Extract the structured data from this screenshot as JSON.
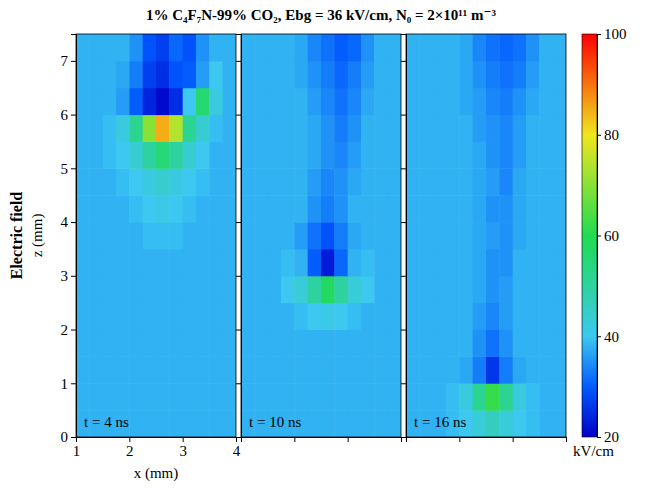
{
  "chart_data": [
    {
      "type": "heatmap",
      "title": "1% C₄F₇N-99% CO₂, Ebg = 36 kV/cm, N₀ = 2×10¹¹ m⁻³",
      "row_label": "Electric field",
      "xlabel": "x (mm)",
      "ylabel": "z (mm)",
      "annotation": "t = 4 ns",
      "xlim": [
        1,
        4
      ],
      "xticks": [
        1,
        2,
        3,
        4
      ],
      "ylim": [
        0,
        7.5
      ],
      "yticks": [
        0,
        1,
        2,
        3,
        4,
        5,
        6,
        7
      ],
      "x": [
        1.125,
        1.375,
        1.625,
        1.875,
        2.125,
        2.375,
        2.625,
        2.875,
        3.125,
        3.375,
        3.625,
        3.875
      ],
      "y": [
        0.25,
        0.75,
        1.25,
        1.75,
        2.25,
        2.75,
        3.25,
        3.75,
        4.25,
        4.75,
        5.25,
        5.75,
        6.25,
        6.75,
        7.25
      ],
      "values": [
        [
          38,
          38,
          38,
          38,
          38,
          38,
          38,
          38,
          38,
          38,
          38,
          38
        ],
        [
          38,
          38,
          38,
          38,
          38,
          38,
          38,
          38,
          38,
          38,
          38,
          38
        ],
        [
          38,
          38,
          38,
          38,
          38,
          38,
          38,
          38,
          38,
          38,
          38,
          38
        ],
        [
          38,
          38,
          38,
          38,
          38,
          38,
          38,
          38,
          38,
          38,
          38,
          38
        ],
        [
          38,
          38,
          38,
          38,
          38,
          38,
          38,
          38,
          38,
          38,
          38,
          38
        ],
        [
          38,
          38,
          38,
          38,
          38,
          38,
          38,
          38,
          38,
          38,
          38,
          38
        ],
        [
          38,
          38,
          38,
          38,
          38,
          38,
          38,
          38,
          38,
          38,
          38,
          38
        ],
        [
          38,
          38,
          38,
          38,
          38,
          39,
          39,
          39,
          38,
          38,
          38,
          38
        ],
        [
          38,
          38,
          38,
          38,
          39,
          40,
          41,
          40,
          39,
          38,
          38,
          38
        ],
        [
          38,
          38,
          38,
          39,
          40,
          42,
          44,
          42,
          40,
          39,
          38,
          38
        ],
        [
          38,
          38,
          39,
          40,
          44,
          50,
          55,
          50,
          44,
          40,
          38,
          38
        ],
        [
          38,
          38,
          39,
          42,
          52,
          70,
          85,
          74,
          52,
          44,
          39,
          38
        ],
        [
          38,
          38,
          38,
          36,
          30,
          24,
          21,
          25,
          40,
          56,
          42,
          38
        ],
        [
          38,
          38,
          38,
          37,
          33,
          27,
          25,
          29,
          30,
          36,
          40,
          38
        ],
        [
          38,
          38,
          38,
          38,
          35,
          29,
          27,
          31,
          29,
          35,
          38,
          38
        ]
      ]
    },
    {
      "type": "heatmap",
      "annotation": "t = 10 ns",
      "tick_labels": false,
      "xlim": [
        1,
        4
      ],
      "xticks": [
        1,
        2,
        3,
        4
      ],
      "ylim": [
        0,
        7.5
      ],
      "yticks": [
        0,
        1,
        2,
        3,
        4,
        5,
        6,
        7
      ],
      "x": [
        1.125,
        1.375,
        1.625,
        1.875,
        2.125,
        2.375,
        2.625,
        2.875,
        3.125,
        3.375,
        3.625,
        3.875
      ],
      "y": [
        0.25,
        0.75,
        1.25,
        1.75,
        2.25,
        2.75,
        3.25,
        3.75,
        4.25,
        4.75,
        5.25,
        5.75,
        6.25,
        6.75,
        7.25
      ],
      "values": [
        [
          38,
          38,
          38,
          38,
          38,
          38,
          38,
          38,
          38,
          38,
          38,
          38
        ],
        [
          38,
          38,
          38,
          38,
          38,
          38,
          38,
          38,
          38,
          38,
          38,
          38
        ],
        [
          38,
          38,
          38,
          38,
          38,
          38,
          38,
          38,
          38,
          38,
          38,
          38
        ],
        [
          38,
          38,
          38,
          38,
          38,
          38,
          38,
          38,
          38,
          38,
          38,
          38
        ],
        [
          38,
          38,
          38,
          38,
          39,
          40,
          41,
          40,
          39,
          38,
          38,
          38
        ],
        [
          38,
          38,
          38,
          40,
          43,
          50,
          58,
          50,
          43,
          40,
          38,
          38
        ],
        [
          38,
          38,
          38,
          39,
          38,
          30,
          23,
          31,
          38,
          39,
          38,
          38
        ],
        [
          38,
          38,
          38,
          38,
          36,
          32,
          29,
          33,
          37,
          38,
          38,
          38
        ],
        [
          38,
          38,
          38,
          38,
          38,
          35,
          33,
          35,
          38,
          38,
          38,
          38
        ],
        [
          38,
          38,
          38,
          38,
          38,
          36,
          34,
          35,
          37,
          38,
          38,
          38
        ],
        [
          38,
          38,
          38,
          38,
          38,
          37,
          35,
          34,
          36,
          38,
          38,
          38
        ],
        [
          38,
          38,
          38,
          38,
          38,
          37,
          35,
          33,
          35,
          38,
          38,
          38
        ],
        [
          38,
          38,
          38,
          38,
          38,
          36,
          34,
          32,
          34,
          37,
          38,
          38
        ],
        [
          38,
          38,
          38,
          38,
          37,
          35,
          33,
          31,
          33,
          36,
          38,
          38
        ],
        [
          38,
          38,
          38,
          38,
          37,
          34,
          32,
          30,
          31,
          35,
          38,
          38
        ]
      ]
    },
    {
      "type": "heatmap",
      "annotation": "t = 16 ns",
      "tick_labels": false,
      "xlim": [
        1,
        4
      ],
      "xticks": [
        1,
        2,
        3,
        4
      ],
      "ylim": [
        0,
        7.5
      ],
      "yticks": [
        0,
        1,
        2,
        3,
        4,
        5,
        6,
        7
      ],
      "x": [
        1.125,
        1.375,
        1.625,
        1.875,
        2.125,
        2.375,
        2.625,
        2.875,
        3.125,
        3.375,
        3.625,
        3.875
      ],
      "y": [
        0.25,
        0.75,
        1.25,
        1.75,
        2.25,
        2.75,
        3.25,
        3.75,
        4.25,
        4.75,
        5.25,
        5.75,
        6.25,
        6.75,
        7.25
      ],
      "values": [
        [
          38,
          38,
          38,
          39,
          40,
          43,
          46,
          43,
          40,
          39,
          38,
          38
        ],
        [
          38,
          38,
          38,
          39,
          42,
          52,
          62,
          52,
          42,
          39,
          38,
          38
        ],
        [
          38,
          38,
          38,
          38,
          37,
          33,
          26,
          33,
          37,
          38,
          38,
          38
        ],
        [
          38,
          38,
          38,
          38,
          38,
          35,
          32,
          35,
          38,
          38,
          38,
          38
        ],
        [
          38,
          38,
          38,
          38,
          38,
          36,
          34,
          36,
          38,
          38,
          38,
          38
        ],
        [
          38,
          38,
          38,
          38,
          38,
          37,
          35,
          36,
          38,
          38,
          38,
          38
        ],
        [
          38,
          38,
          38,
          38,
          38,
          37,
          35,
          35,
          38,
          38,
          38,
          38
        ],
        [
          38,
          38,
          38,
          38,
          38,
          37,
          36,
          35,
          37,
          38,
          38,
          38
        ],
        [
          38,
          38,
          38,
          38,
          38,
          37,
          35,
          35,
          37,
          38,
          38,
          38
        ],
        [
          38,
          38,
          38,
          38,
          38,
          37,
          36,
          34,
          37,
          38,
          38,
          38
        ],
        [
          38,
          38,
          38,
          38,
          38,
          37,
          35,
          34,
          36,
          38,
          38,
          38
        ],
        [
          38,
          38,
          38,
          38,
          38,
          36,
          35,
          34,
          36,
          38,
          38,
          38
        ],
        [
          38,
          38,
          38,
          38,
          37,
          36,
          34,
          33,
          35,
          37,
          38,
          38
        ],
        [
          38,
          38,
          38,
          38,
          37,
          35,
          33,
          32,
          33,
          36,
          38,
          38
        ],
        [
          38,
          38,
          38,
          38,
          37,
          34,
          32,
          31,
          32,
          35,
          38,
          38
        ]
      ],
      "colorbar": {
        "range": [
          20,
          100
        ],
        "ticks": [
          20,
          40,
          60,
          80,
          100
        ],
        "label": "kV/cm"
      }
    }
  ]
}
